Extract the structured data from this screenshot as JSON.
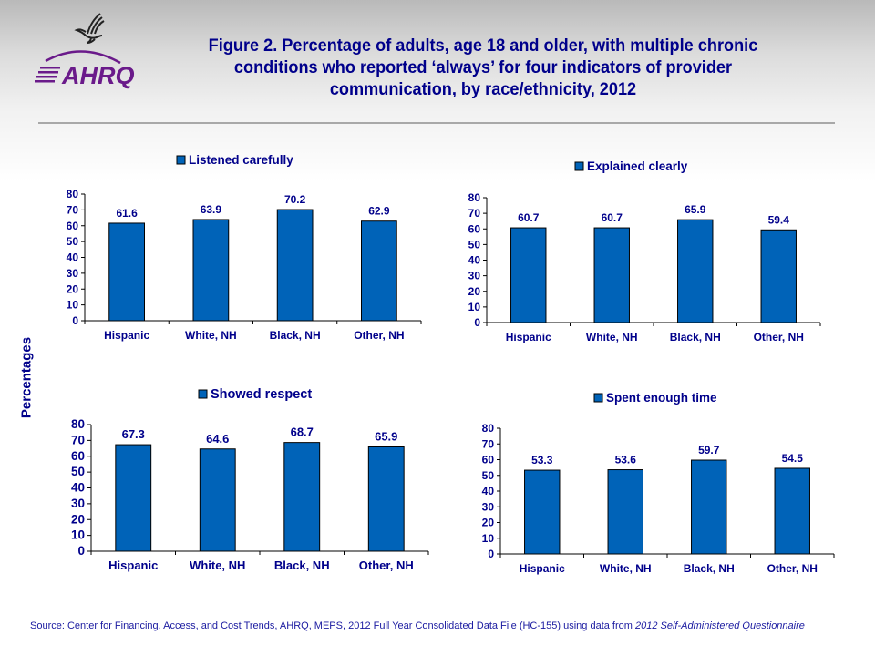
{
  "header": {
    "org_logo": "AHRQ",
    "hhs_logo": "hhs-eagle",
    "title": "Figure 2. Percentage of adults, age 18 and older, with multiple chronic conditions who reported ‘always’ for four indicators of provider communication,  by race/ethnicity, 2012"
  },
  "shared_ylabel": "Percentages",
  "colors": {
    "bar": "#0063b8",
    "bar_border": "#000000",
    "text": "#00008b"
  },
  "chart_data": [
    {
      "type": "bar",
      "title": "",
      "legend": "Listened carefully",
      "legend_position": "top",
      "categories": [
        "Hispanic",
        "White, NH",
        "Black, NH",
        "Other, NH"
      ],
      "values": [
        61.6,
        63.9,
        70.2,
        62.9
      ],
      "data_labels": [
        "61.6",
        "63.9",
        "70.2",
        "62.9"
      ],
      "xlabel": "",
      "ylabel": "Percentages",
      "ylim": [
        0,
        80
      ],
      "yticks": [
        0,
        10,
        20,
        30,
        40,
        50,
        60,
        70,
        80
      ],
      "grid": false
    },
    {
      "type": "bar",
      "title": "",
      "legend": "Explained clearly",
      "legend_position": "top",
      "categories": [
        "Hispanic",
        "White, NH",
        "Black, NH",
        "Other, NH"
      ],
      "values": [
        60.7,
        60.7,
        65.9,
        59.4
      ],
      "data_labels": [
        "60.7",
        "60.7",
        "65.9",
        "59.4"
      ],
      "xlabel": "",
      "ylabel": "Percentages",
      "ylim": [
        0,
        80
      ],
      "yticks": [
        0,
        10,
        20,
        30,
        40,
        50,
        60,
        70,
        80
      ],
      "grid": false
    },
    {
      "type": "bar",
      "title": "",
      "legend": "Showed respect",
      "legend_position": "top",
      "categories": [
        "Hispanic",
        "White, NH",
        "Black, NH",
        "Other, NH"
      ],
      "values": [
        67.3,
        64.6,
        68.7,
        65.9
      ],
      "data_labels": [
        "67.3",
        "64.6",
        "68.7",
        "65.9"
      ],
      "xlabel": "",
      "ylabel": "Percentages",
      "ylim": [
        0,
        80
      ],
      "yticks": [
        0,
        10,
        20,
        30,
        40,
        50,
        60,
        70,
        80
      ],
      "grid": false
    },
    {
      "type": "bar",
      "title": "",
      "legend": "Spent enough time",
      "legend_position": "top",
      "categories": [
        "Hispanic",
        "White, NH",
        "Black, NH",
        "Other, NH"
      ],
      "values": [
        53.3,
        53.6,
        59.7,
        54.5
      ],
      "data_labels": [
        "53.3",
        "53.6",
        "59.7",
        "54.5"
      ],
      "xlabel": "",
      "ylabel": "Percentages",
      "ylim": [
        0,
        80
      ],
      "yticks": [
        0,
        10,
        20,
        30,
        40,
        50,
        60,
        70,
        80
      ],
      "grid": false
    }
  ],
  "footer": {
    "source_prefix": "Source: Center for Financing, Access, and Cost Trends, AHRQ, MEPS,  2012  Full Year Consolidated Data File (HC-155)  using data from ",
    "source_italic": "2012 Self-Administered Questionnaire"
  }
}
